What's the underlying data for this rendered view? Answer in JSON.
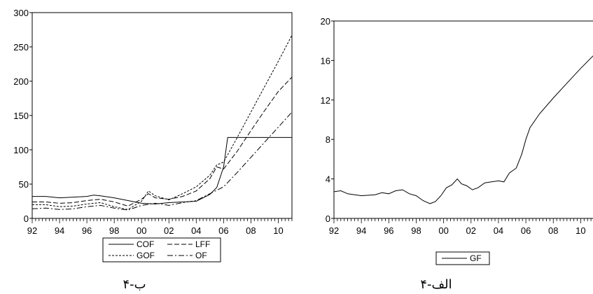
{
  "chart_data": [
    {
      "type": "line",
      "caption": "۴-ب",
      "xlim": [
        1992,
        2011
      ],
      "ylim": [
        0,
        300
      ],
      "x_ticks": [
        {
          "v": 1992,
          "label": "92"
        },
        {
          "v": 1994,
          "label": "94"
        },
        {
          "v": 1996,
          "label": "96"
        },
        {
          "v": 1998,
          "label": "98"
        },
        {
          "v": 2000,
          "label": "00"
        },
        {
          "v": 2002,
          "label": "02"
        },
        {
          "v": 2004,
          "label": "04"
        },
        {
          "v": 2006,
          "label": "06"
        },
        {
          "v": 2008,
          "label": "08"
        },
        {
          "v": 2010,
          "label": "10"
        }
      ],
      "y_ticks": [
        0,
        50,
        100,
        150,
        200,
        250,
        300
      ],
      "grid": false,
      "legend_position": "bottom",
      "series": [
        {
          "name": "COF",
          "dash": "solid",
          "points": [
            [
              1992,
              32
            ],
            [
              1993,
              32
            ],
            [
              1994,
              30
            ],
            [
              1995,
              31
            ],
            [
              1996,
              32
            ],
            [
              1996.5,
              34
            ],
            [
              1997,
              33
            ],
            [
              1998,
              30
            ],
            [
              1999,
              26
            ],
            [
              2000,
              22
            ],
            [
              2001,
              21
            ],
            [
              2002,
              23
            ],
            [
              2003,
              24
            ],
            [
              2004,
              25
            ],
            [
              2005,
              35
            ],
            [
              2005.5,
              45
            ],
            [
              2006,
              75
            ],
            [
              2006.3,
              118
            ],
            [
              2011,
              118
            ]
          ]
        },
        {
          "name": "LFF",
          "dash": "long",
          "points": [
            [
              1992,
              24
            ],
            [
              1993,
              24
            ],
            [
              1994,
              22
            ],
            [
              1995,
              23
            ],
            [
              1996,
              26
            ],
            [
              1997,
              28
            ],
            [
              1998,
              24
            ],
            [
              1999,
              18
            ],
            [
              2000,
              28
            ],
            [
              2000.5,
              36
            ],
            [
              2001,
              30
            ],
            [
              2002,
              28
            ],
            [
              2003,
              32
            ],
            [
              2004,
              40
            ],
            [
              2005,
              58
            ],
            [
              2005.5,
              75
            ],
            [
              2006,
              72
            ],
            [
              2007,
              98
            ],
            [
              2008,
              128
            ],
            [
              2009,
              157
            ],
            [
              2010,
              185
            ],
            [
              2011,
              206
            ]
          ]
        },
        {
          "name": "GOF",
          "dash": "short",
          "points": [
            [
              1992,
              20
            ],
            [
              1993,
              20
            ],
            [
              1994,
              17
            ],
            [
              1995,
              18
            ],
            [
              1996,
              21
            ],
            [
              1997,
              23
            ],
            [
              1998,
              17
            ],
            [
              1999,
              13
            ],
            [
              2000,
              25
            ],
            [
              2000.5,
              40
            ],
            [
              2001,
              33
            ],
            [
              2002,
              27
            ],
            [
              2003,
              36
            ],
            [
              2004,
              46
            ],
            [
              2005,
              63
            ],
            [
              2005.5,
              78
            ],
            [
              2006,
              82
            ],
            [
              2007,
              118
            ],
            [
              2008,
              155
            ],
            [
              2009,
              192
            ],
            [
              2010,
              229
            ],
            [
              2011,
              267
            ]
          ]
        },
        {
          "name": "OF",
          "dash": "dashdot",
          "points": [
            [
              1992,
              14
            ],
            [
              1993,
              15
            ],
            [
              1994,
              13
            ],
            [
              1995,
              14
            ],
            [
              1996,
              17
            ],
            [
              1997,
              19
            ],
            [
              1998,
              15
            ],
            [
              1999,
              12
            ],
            [
              2000,
              19
            ],
            [
              2001,
              22
            ],
            [
              2002,
              19
            ],
            [
              2003,
              23
            ],
            [
              2004,
              26
            ],
            [
              2005,
              36
            ],
            [
              2006,
              46
            ],
            [
              2007,
              67
            ],
            [
              2008,
              89
            ],
            [
              2009,
              111
            ],
            [
              2010,
              133
            ],
            [
              2011,
              155
            ]
          ]
        }
      ]
    },
    {
      "type": "line",
      "caption": "۴-الف",
      "xlim": [
        1992,
        2011
      ],
      "ylim": [
        0,
        20
      ],
      "x_ticks": [
        {
          "v": 1992,
          "label": "92"
        },
        {
          "v": 1994,
          "label": "94"
        },
        {
          "v": 1996,
          "label": "96"
        },
        {
          "v": 1998,
          "label": "98"
        },
        {
          "v": 2000,
          "label": "00"
        },
        {
          "v": 2002,
          "label": "02"
        },
        {
          "v": 2004,
          "label": "04"
        },
        {
          "v": 2006,
          "label": "06"
        },
        {
          "v": 2008,
          "label": "08"
        },
        {
          "v": 2010,
          "label": "10"
        }
      ],
      "y_ticks": [
        0,
        4,
        8,
        12,
        16,
        20
      ],
      "grid": false,
      "legend_position": "bottom",
      "series": [
        {
          "name": "GF",
          "dash": "solid",
          "points": [
            [
              1992,
              2.7
            ],
            [
              1992.5,
              2.8
            ],
            [
              1993,
              2.5
            ],
            [
              1994,
              2.3
            ],
            [
              1995,
              2.4
            ],
            [
              1995.5,
              2.6
            ],
            [
              1996,
              2.5
            ],
            [
              1996.5,
              2.8
            ],
            [
              1997,
              2.9
            ],
            [
              1997.5,
              2.5
            ],
            [
              1998,
              2.3
            ],
            [
              1998.5,
              1.8
            ],
            [
              1999,
              1.5
            ],
            [
              1999.4,
              1.7
            ],
            [
              1999.8,
              2.3
            ],
            [
              2000.2,
              3.1
            ],
            [
              2000.6,
              3.4
            ],
            [
              2001,
              4.0
            ],
            [
              2001.3,
              3.5
            ],
            [
              2001.7,
              3.3
            ],
            [
              2002.1,
              2.9
            ],
            [
              2002.5,
              3.1
            ],
            [
              2003,
              3.6
            ],
            [
              2003.5,
              3.7
            ],
            [
              2004,
              3.8
            ],
            [
              2004.4,
              3.7
            ],
            [
              2004.8,
              4.6
            ],
            [
              2005.3,
              5.1
            ],
            [
              2005.7,
              6.5
            ],
            [
              2006,
              8.0
            ],
            [
              2006.3,
              9.2
            ],
            [
              2007,
              10.6
            ],
            [
              2008,
              12.2
            ],
            [
              2009,
              13.7
            ],
            [
              2010,
              15.2
            ],
            [
              2011,
              16.6
            ]
          ]
        }
      ]
    }
  ]
}
